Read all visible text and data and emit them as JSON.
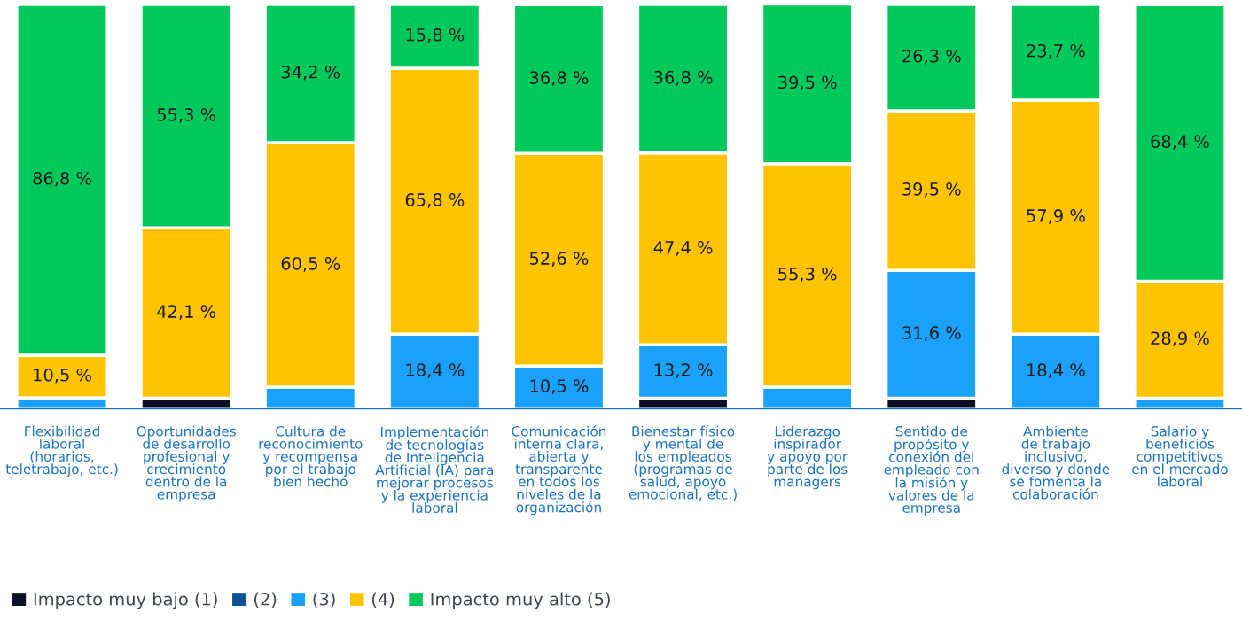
{
  "chart_data": {
    "type": "bar",
    "stacked": true,
    "ylim": [
      0,
      100
    ],
    "tick_labels": "x",
    "grid": false,
    "legend": "bottom left",
    "categories": [
      "Flexibilidad\nlaboral\n(horarios,\nteletrabajo, etc.)",
      "Oportunidades\nde desarrollo\nprofesional y\ncrecimiento\ndentro de la\nempresa",
      "Cultura de\nreconocimiento\ny recompensa\npor el trabajo\nbien hecho",
      "Implementación\nde tecnologías\nde Inteligencia\nArtificial (IA) para\nmejorar procesos\ny la experiencia\nlaboral",
      "Comunicación\ninterna clara,\nabierta y\ntransparente\nen todos los\nniveles de la\norganización",
      "Bienestar físico\ny mental de\nlos empleados\n(programas de\nsalud, apoyo\nemocional, etc.)",
      "Liderazgo\ninspirador\ny apoyo por\nparte de los\nmanagers",
      "Sentido de\npropósito y\nconexión del\nempleado con\nla misión y\nvalores de la\nempresa",
      "Ambiente\nde trabajo\ninclusivo,\ndiverso y donde\nse fomenta la\ncolaboración",
      "Salario y\nbeneficios\ncompetitivos\nen el mercado\nlaboral"
    ],
    "series": [
      {
        "name": "Impacto muy bajo (1)",
        "color": "#0a1128",
        "values": [
          null,
          2.6,
          null,
          null,
          null,
          2.6,
          null,
          2.6,
          null,
          null
        ],
        "value_labels": [
          null,
          null,
          null,
          null,
          null,
          null,
          null,
          null,
          null,
          null
        ]
      },
      {
        "name": "(2)",
        "color": "#0b5394",
        "values": [
          null,
          null,
          null,
          null,
          null,
          null,
          null,
          null,
          null,
          null
        ],
        "value_labels": [
          null,
          null,
          null,
          null,
          null,
          null,
          null,
          null,
          null,
          null
        ]
      },
      {
        "name": "(3)",
        "color": "#1aa1fb",
        "values": [
          2.7,
          null,
          5.3,
          18.4,
          10.5,
          13.2,
          5.3,
          31.6,
          18.4,
          2.6
        ],
        "value_labels": [
          null,
          null,
          null,
          "18,4 %",
          "10,5 %",
          "13,2 %",
          null,
          "31,6 %",
          "18,4 %",
          null
        ]
      },
      {
        "name": "(4)",
        "color": "#ffc300",
        "values": [
          10.5,
          42.1,
          60.5,
          65.8,
          52.6,
          47.4,
          55.3,
          39.5,
          57.9,
          28.9
        ],
        "value_labels": [
          "10,5 %",
          "42,1 %",
          "60,5 %",
          "65,8 %",
          "52,6 %",
          "47,4 %",
          "55,3 %",
          "39,5 %",
          "57,9 %",
          "28,9 %"
        ]
      },
      {
        "name": "Impacto muy alto (5)",
        "color": "#00c95c",
        "values": [
          86.8,
          55.3,
          34.2,
          15.8,
          36.8,
          36.8,
          39.5,
          26.3,
          23.7,
          68.4
        ],
        "value_labels": [
          "86,8 %",
          "55,3 %",
          "34,2 %",
          "15,8 %",
          "36,8 %",
          "36,8 %",
          "39,5 %",
          "26,3 %",
          "23,7 %",
          "68,4 %"
        ]
      }
    ]
  }
}
